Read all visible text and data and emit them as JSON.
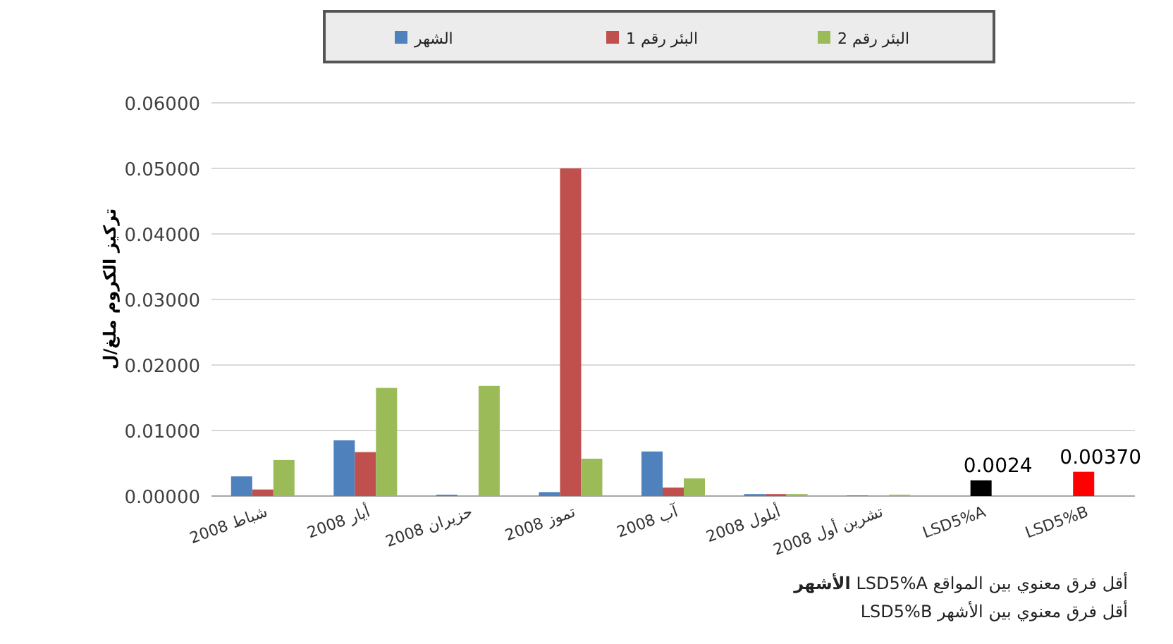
{
  "chart_data": {
    "type": "bar",
    "ylabel": "تركيز الكروم ملغ/ل",
    "categories": [
      "شباط 2008",
      "أيار 2008",
      "حزيران 2008",
      "تموز 2008",
      "آب 2008",
      "أيلول 2008",
      "تشرين أول 2008",
      "LSD5%A",
      "LSD5%B"
    ],
    "series": [
      {
        "name": "الشهر",
        "color": "#4f81bd",
        "values": [
          0.003,
          0.0085,
          0.0002,
          0.0006,
          0.0068,
          0.0003,
          0.0001,
          null,
          null
        ]
      },
      {
        "name": "البئر رقم 1",
        "color": "#c0504d",
        "values": [
          0.001,
          0.0067,
          0.0,
          0.05,
          0.0013,
          0.0003,
          0.0,
          null,
          null
        ]
      },
      {
        "name": "البئر رقم 2",
        "color": "#9bbb59",
        "values": [
          0.0055,
          0.0165,
          0.0168,
          0.0057,
          0.0027,
          0.0003,
          0.0002,
          null,
          null
        ]
      },
      {
        "colors": [
          null,
          null,
          null,
          null,
          null,
          null,
          null,
          "#000000",
          "#ff0000"
        ],
        "values": [
          null,
          null,
          null,
          null,
          null,
          null,
          null,
          0.0024,
          0.0037
        ],
        "value_labels": [
          null,
          null,
          null,
          null,
          null,
          null,
          null,
          "0.0024",
          "0.00370"
        ]
      }
    ],
    "ylim": [
      0,
      0.06
    ],
    "yticks": [
      {
        "value": 0,
        "label": "0.00000"
      },
      {
        "value": 0.01,
        "label": "0.01000"
      },
      {
        "value": 0.02,
        "label": "0.02000"
      },
      {
        "value": 0.03,
        "label": "0.03000"
      },
      {
        "value": 0.04,
        "label": "0.04000"
      },
      {
        "value": 0.05,
        "label": "0.05000"
      },
      {
        "value": 0.06,
        "label": "0.06000"
      }
    ],
    "grid": "y",
    "legend": "top",
    "annotations": [
      "أقل فرق معنوي بين المواقع LSD5%A **الأشهر**",
      "أقل فرق معنوي بين الأشهر LSD5%B"
    ]
  }
}
